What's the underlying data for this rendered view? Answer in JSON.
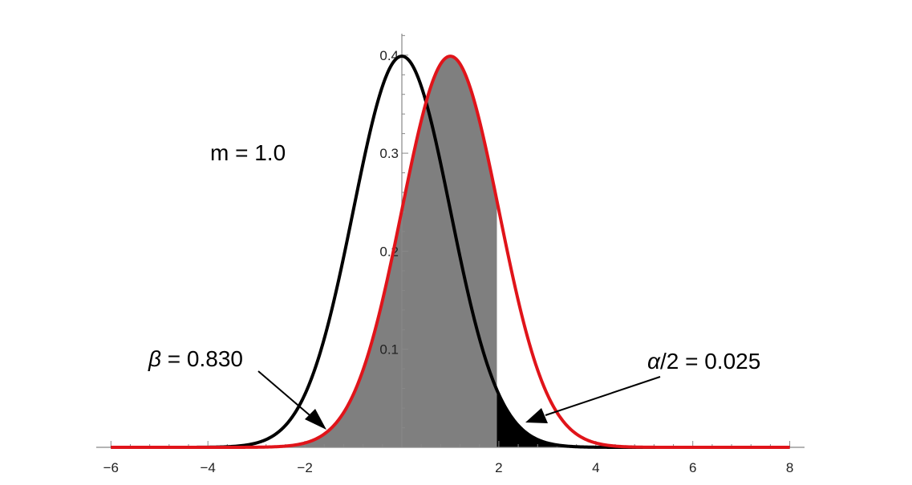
{
  "chart_data": {
    "type": "area",
    "title": "",
    "xlabel": "",
    "ylabel": "",
    "xlim": [
      -6,
      8
    ],
    "ylim": [
      0,
      0.42
    ],
    "x_ticks": [
      {
        "value": -6,
        "label": "−6"
      },
      {
        "value": -4,
        "label": "−4"
      },
      {
        "value": -2,
        "label": "−2"
      },
      {
        "value": 2,
        "label": "2"
      },
      {
        "value": 4,
        "label": "4"
      },
      {
        "value": 6,
        "label": "6"
      },
      {
        "value": 8,
        "label": "8"
      }
    ],
    "y_ticks": [
      {
        "value": 0.1,
        "label": "0.1"
      },
      {
        "value": 0.2,
        "label": "0.2"
      },
      {
        "value": 0.3,
        "label": "0.3"
      },
      {
        "value": 0.4,
        "label": "0.4"
      }
    ],
    "series": [
      {
        "distribution": "normal",
        "mean": 0,
        "sd": 1,
        "color": "#000000"
      },
      {
        "distribution": "normal",
        "mean": 1,
        "sd": 1,
        "color": "#e0141a"
      }
    ],
    "regions": [
      {
        "under": "red-curve",
        "from": -6,
        "to": 1.96,
        "color": "#7f7f7f"
      },
      {
        "under": "black-curve",
        "from": 1.96,
        "to": 8,
        "color": "#000000"
      }
    ],
    "annotations": {
      "m_label": "m = 1.0",
      "beta_label": "β = 0.830",
      "alpha_label": "α/2 = 0.025"
    },
    "grid": false,
    "legend": "none"
  }
}
